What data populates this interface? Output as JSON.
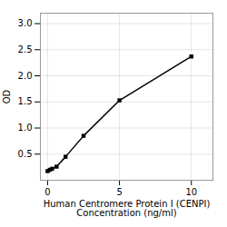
{
  "chart_data": {
    "type": "line",
    "x": [
      0,
      0.156,
      0.313,
      0.625,
      1.25,
      2.5,
      5,
      10
    ],
    "values": [
      0.175,
      0.2,
      0.22,
      0.26,
      0.45,
      0.85,
      1.53,
      2.37
    ],
    "xlabel": "Human Centromere Protein I (CENPI)\nConcentration (ng/ml)",
    "ylabel": "OD",
    "xlim": [
      -0.5,
      11.5
    ],
    "ylim": [
      0.0,
      3.2
    ],
    "xticks": [
      0,
      5,
      10
    ],
    "yticks": [
      0.5,
      {
        "value": 1.0,
        "label": "1.0"
      },
      1.5,
      {
        "value": 2.0,
        "label": "2.0"
      },
      2.5,
      {
        "value": 3.0,
        "label": "3.0"
      }
    ],
    "marker": "square",
    "grid": true
  }
}
